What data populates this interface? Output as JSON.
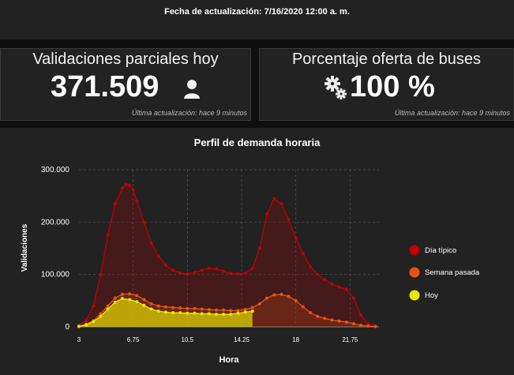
{
  "header": {
    "title": "Fecha de actualización: 7/16/2020 12:00 a. m."
  },
  "kpi_validaciones": {
    "label": "Validaciones parciales hoy",
    "value": "371.509",
    "icon": "person-icon",
    "footer": "Última actualización: hace 9 minutos"
  },
  "kpi_buses": {
    "label": "Porcentaje oferta de buses",
    "value": "100 %",
    "icon": "gears-icon",
    "footer": "Última actualización: hace 9 minutos"
  },
  "chart_data": {
    "type": "area",
    "title": "Perfil de demanda horaria",
    "xlabel": "Hora",
    "ylabel": "Validaciones",
    "xlim": [
      3,
      23.75
    ],
    "ylim": [
      0,
      300000
    ],
    "xticks": [
      3,
      6.75,
      10.5,
      14.25,
      18,
      21.75
    ],
    "xtick_labels": [
      "3",
      "6.75",
      "10.5",
      "14.25",
      "18",
      "21.75"
    ],
    "yticks": [
      0,
      100000,
      200000,
      300000
    ],
    "ytick_labels": [
      "0",
      "100.000",
      "200.000",
      "300.000"
    ],
    "grid": true,
    "legend_position": "right",
    "series": [
      {
        "name": "Día típico",
        "color": "#c00000",
        "x": [
          3,
          3.5,
          4,
          4.5,
          5,
          5.5,
          6,
          6.25,
          6.5,
          6.75,
          7,
          7.5,
          8,
          8.5,
          9,
          9.5,
          10,
          10.5,
          11,
          11.5,
          12,
          12.5,
          13,
          13.5,
          14,
          14.5,
          15,
          15.5,
          16,
          16.5,
          17,
          17.5,
          18,
          18.5,
          19,
          19.5,
          20,
          20.5,
          21,
          21.5,
          22,
          22.5,
          23,
          23.5
        ],
        "values": [
          3000,
          12000,
          40000,
          100000,
          175000,
          235000,
          265000,
          272000,
          270000,
          262000,
          240000,
          200000,
          160000,
          135000,
          118000,
          108000,
          103000,
          101000,
          104000,
          108000,
          112000,
          111000,
          106000,
          102000,
          101000,
          102000,
          112000,
          150000,
          215000,
          245000,
          235000,
          205000,
          170000,
          140000,
          115000,
          100000,
          90000,
          82000,
          76000,
          72000,
          55000,
          22000,
          6000,
          2000
        ]
      },
      {
        "name": "Semana pasada",
        "color": "#e8540f",
        "x": [
          3,
          3.5,
          4,
          4.5,
          5,
          5.5,
          6,
          6.5,
          7,
          7.5,
          8,
          8.5,
          9,
          9.5,
          10,
          10.5,
          11,
          11.5,
          12,
          12.5,
          13,
          13.5,
          14,
          14.5,
          15,
          15.5,
          16,
          16.5,
          17,
          17.5,
          18,
          18.5,
          19,
          19.5,
          20,
          20.5,
          21,
          21.5,
          22,
          22.5,
          23,
          23.5
        ],
        "values": [
          1000,
          5000,
          12000,
          25000,
          40000,
          55000,
          62000,
          63000,
          60000,
          52000,
          44000,
          40000,
          38000,
          37000,
          36000,
          35000,
          35000,
          34000,
          33000,
          32000,
          32000,
          31000,
          31000,
          33000,
          37000,
          44000,
          55000,
          61000,
          62000,
          58000,
          50000,
          38000,
          27000,
          20000,
          16000,
          13000,
          11000,
          9000,
          6000,
          3000,
          1500,
          500
        ]
      },
      {
        "name": "Hoy",
        "color": "#e8e800",
        "x": [
          3,
          3.5,
          4,
          4.5,
          5,
          5.5,
          6,
          6.5,
          7,
          7.5,
          8,
          8.5,
          9,
          9.5,
          10,
          10.5,
          11,
          11.5,
          12,
          12.5,
          13,
          13.5,
          14,
          14.5,
          15
        ],
        "values": [
          1000,
          4000,
          10000,
          20000,
          34000,
          47000,
          54000,
          52000,
          48000,
          41000,
          34000,
          30000,
          28000,
          27000,
          27000,
          26000,
          26000,
          25000,
          25000,
          24000,
          24000,
          24000,
          26000,
          28000,
          30000
        ]
      }
    ]
  }
}
